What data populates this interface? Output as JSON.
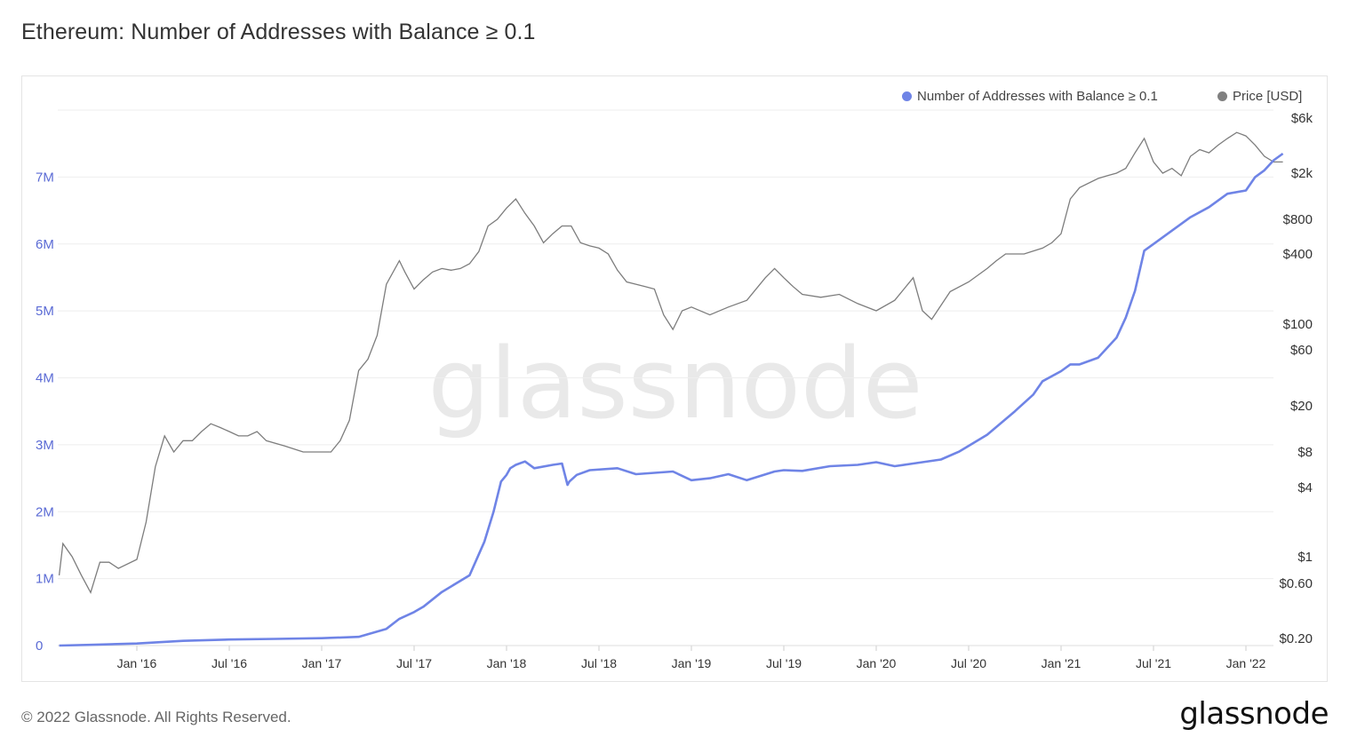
{
  "title": "Ethereum: Number of Addresses with Balance ≥ 0.1",
  "footer": "© 2022 Glassnode. All Rights Reserved.",
  "brand": "glassnode",
  "watermark": "glassnode",
  "chart_data": {
    "type": "line",
    "title": "Ethereum: Number of Addresses with Balance ≥ 0.1",
    "legend_position": "top-right",
    "grid": true,
    "x_ticks": [
      "Jan '16",
      "Jul '16",
      "Jan '17",
      "Jul '17",
      "Jan '18",
      "Jul '18",
      "Jan '19",
      "Jul '19",
      "Jan '20",
      "Jul '20",
      "Jan '21",
      "Jul '21",
      "Jan '22"
    ],
    "y_left_ticks": [
      "0",
      "1M",
      "2M",
      "3M",
      "4M",
      "5M",
      "6M",
      "7M"
    ],
    "y_left_values": [
      0,
      1000000,
      2000000,
      3000000,
      4000000,
      5000000,
      6000000,
      7000000
    ],
    "y_left_range": [
      0,
      8000000
    ],
    "y_right_scale": "log",
    "y_right_ticks": [
      "$0.20",
      "$0.60",
      "$1",
      "$4",
      "$8",
      "$20",
      "$60",
      "$100",
      "$400",
      "$800",
      "$2k",
      "$6k"
    ],
    "y_right_values": [
      0.2,
      0.6,
      1,
      4,
      8,
      20,
      60,
      100,
      400,
      800,
      2000,
      6000
    ],
    "series": [
      {
        "name": "Number of Addresses with Balance ≥ 0.1",
        "axis": "left",
        "color": "#6f84e6",
        "x": [
          2015.58,
          2015.75,
          2016.0,
          2016.25,
          2016.5,
          2016.75,
          2017.0,
          2017.2,
          2017.35,
          2017.42,
          2017.5,
          2017.55,
          2017.65,
          2017.8,
          2017.88,
          2017.93,
          2017.97,
          2018.0,
          2018.02,
          2018.05,
          2018.1,
          2018.15,
          2018.25,
          2018.3,
          2018.33,
          2018.34,
          2018.38,
          2018.45,
          2018.6,
          2018.7,
          2018.8,
          2018.9,
          2019.0,
          2019.1,
          2019.2,
          2019.3,
          2019.45,
          2019.5,
          2019.6,
          2019.75,
          2019.9,
          2020.0,
          2020.1,
          2020.2,
          2020.35,
          2020.45,
          2020.6,
          2020.75,
          2020.85,
          2020.9,
          2021.0,
          2021.05,
          2021.1,
          2021.2,
          2021.3,
          2021.35,
          2021.4,
          2021.45,
          2021.5,
          2021.6,
          2021.7,
          2021.8,
          2021.9,
          2022.0,
          2022.05,
          2022.1,
          2022.15,
          2022.2
        ],
        "values": [
          0,
          10000,
          30000,
          70000,
          90000,
          100000,
          110000,
          130000,
          250000,
          400000,
          500000,
          580000,
          800000,
          1050000,
          1550000,
          2000000,
          2450000,
          2550000,
          2650000,
          2700000,
          2750000,
          2650000,
          2700000,
          2720000,
          2400000,
          2450000,
          2550000,
          2620000,
          2650000,
          2560000,
          2580000,
          2600000,
          2470000,
          2500000,
          2560000,
          2470000,
          2600000,
          2620000,
          2610000,
          2680000,
          2700000,
          2740000,
          2680000,
          2720000,
          2780000,
          2900000,
          3150000,
          3500000,
          3750000,
          3950000,
          4100000,
          4200000,
          4200000,
          4300000,
          4600000,
          4900000,
          5300000,
          5900000,
          6000000,
          6200000,
          6400000,
          6550000,
          6750000,
          6800000,
          7000000,
          7100000,
          7250000,
          7350000
        ]
      },
      {
        "name": "Price [USD]",
        "axis": "right",
        "color": "#808080",
        "x": [
          2015.58,
          2015.6,
          2015.65,
          2015.7,
          2015.75,
          2015.8,
          2015.85,
          2015.9,
          2016.0,
          2016.05,
          2016.1,
          2016.15,
          2016.2,
          2016.25,
          2016.3,
          2016.35,
          2016.4,
          2016.45,
          2016.5,
          2016.55,
          2016.6,
          2016.65,
          2016.7,
          2016.8,
          2016.9,
          2017.0,
          2017.05,
          2017.1,
          2017.15,
          2017.2,
          2017.25,
          2017.3,
          2017.35,
          2017.42,
          2017.45,
          2017.5,
          2017.55,
          2017.6,
          2017.65,
          2017.7,
          2017.75,
          2017.8,
          2017.85,
          2017.9,
          2017.95,
          2018.0,
          2018.05,
          2018.1,
          2018.15,
          2018.2,
          2018.25,
          2018.3,
          2018.35,
          2018.4,
          2018.45,
          2018.5,
          2018.55,
          2018.6,
          2018.65,
          2018.7,
          2018.75,
          2018.8,
          2018.85,
          2018.9,
          2018.95,
          2019.0,
          2019.1,
          2019.2,
          2019.3,
          2019.4,
          2019.45,
          2019.5,
          2019.55,
          2019.6,
          2019.7,
          2019.8,
          2019.9,
          2020.0,
          2020.1,
          2020.15,
          2020.2,
          2020.25,
          2020.3,
          2020.4,
          2020.5,
          2020.6,
          2020.65,
          2020.7,
          2020.8,
          2020.9,
          2020.95,
          2021.0,
          2021.05,
          2021.1,
          2021.2,
          2021.25,
          2021.3,
          2021.35,
          2021.4,
          2021.45,
          2021.5,
          2021.55,
          2021.6,
          2021.65,
          2021.7,
          2021.75,
          2021.8,
          2021.85,
          2021.9,
          2021.95,
          2022.0,
          2022.05,
          2022.1,
          2022.15,
          2022.2
        ],
        "values": [
          0.7,
          1.3,
          1.0,
          0.7,
          0.5,
          0.9,
          0.9,
          0.8,
          0.95,
          2.0,
          6.0,
          11.0,
          8.0,
          10.0,
          10.0,
          12.0,
          14.0,
          13.0,
          12.0,
          11.0,
          11.0,
          12.0,
          10.0,
          9.0,
          8.0,
          8.0,
          8.0,
          10.0,
          15.0,
          40.0,
          50.0,
          80.0,
          220.0,
          350.0,
          280.0,
          200.0,
          240.0,
          280.0,
          300.0,
          290.0,
          300.0,
          330.0,
          420.0,
          700.0,
          800.0,
          1000.0,
          1200.0,
          900.0,
          700.0,
          500.0,
          600.0,
          700.0,
          700.0,
          500.0,
          470.0,
          450.0,
          400.0,
          290.0,
          230.0,
          220.0,
          210.0,
          200.0,
          120.0,
          90.0,
          130.0,
          140.0,
          120.0,
          140.0,
          160.0,
          250.0,
          300.0,
          250.0,
          210.0,
          180.0,
          170.0,
          180.0,
          150.0,
          130.0,
          160.0,
          200.0,
          250.0,
          130.0,
          110.0,
          190.0,
          230.0,
          300.0,
          350.0,
          400.0,
          400.0,
          450.0,
          500.0,
          600.0,
          1200.0,
          1500.0,
          1800.0,
          1900.0,
          2000.0,
          2200.0,
          3000.0,
          4000.0,
          2500.0,
          2000.0,
          2200.0,
          1900.0,
          2800.0,
          3200.0,
          3000.0,
          3500.0,
          4000.0,
          4500.0,
          4200.0,
          3500.0,
          2800.0,
          2500.0,
          2500.0
        ]
      }
    ]
  }
}
